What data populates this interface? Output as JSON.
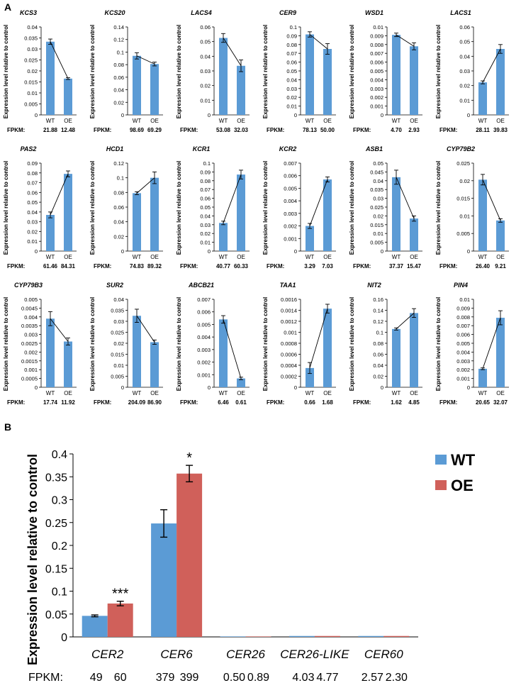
{
  "panels": {
    "a_label": "A",
    "b_label": "B"
  },
  "colors": {
    "wt": "#5b9bd5",
    "oe": "#d0605a",
    "axis": "#000000"
  },
  "chart_data": [
    {
      "type": "bar",
      "gene": "KCS3",
      "ylabel": "Expression level relative to control",
      "categories": [
        "WT",
        "OE"
      ],
      "values": [
        0.0333,
        0.0165
      ],
      "errors": [
        0.0012,
        0.0004
      ],
      "ylim": [
        0,
        0.04
      ],
      "yticks": [
        "0",
        "0.005",
        "0.01",
        "0.015",
        "0.02",
        "0.025",
        "0.03",
        "0.035",
        "0.04"
      ],
      "fpkm_label": "FPKM:",
      "fpkm": [
        "21.88",
        "12.48"
      ]
    },
    {
      "type": "bar",
      "gene": "KCS20",
      "ylabel": "Expression level relative to control",
      "categories": [
        "WT",
        "OE"
      ],
      "values": [
        0.094,
        0.081
      ],
      "errors": [
        0.005,
        0.003
      ],
      "ylim": [
        0,
        0.14
      ],
      "yticks": [
        "0",
        "0.02",
        "0.04",
        "0.06",
        "0.08",
        "0.1",
        "0.12",
        "0.14"
      ],
      "fpkm_label": "FPKM:",
      "fpkm": [
        "98.69",
        "69.29"
      ]
    },
    {
      "type": "bar",
      "gene": "LACS4",
      "ylabel": "Expression level relative to control",
      "categories": [
        "WT",
        "OE"
      ],
      "values": [
        0.0525,
        0.0335
      ],
      "errors": [
        0.003,
        0.004
      ],
      "ylim": [
        0,
        0.06
      ],
      "yticks": [
        "0",
        "0.01",
        "0.02",
        "0.03",
        "0.04",
        "0.05",
        "0.06"
      ],
      "fpkm_label": "FPKM:",
      "fpkm": [
        "53.08",
        "32.03"
      ]
    },
    {
      "type": "bar",
      "gene": "CER9",
      "ylabel": "Expression level relative to control",
      "categories": [
        "WT",
        "OE"
      ],
      "values": [
        0.0915,
        0.075
      ],
      "errors": [
        0.003,
        0.006
      ],
      "ylim": [
        0,
        0.1
      ],
      "yticks": [
        "0",
        "0.01",
        "0.02",
        "0.03",
        "0.04",
        "0.05",
        "0.06",
        "0.07",
        "0.08",
        "0.09",
        "0.1"
      ],
      "fpkm_label": "FPKM:",
      "fpkm": [
        "78.13",
        "50.00"
      ]
    },
    {
      "type": "bar",
      "gene": "WSD1",
      "ylabel": "Expression level relative to control",
      "categories": [
        "WT",
        "OE"
      ],
      "values": [
        0.0091,
        0.0078
      ],
      "errors": [
        0.0002,
        0.0004
      ],
      "ylim": [
        0,
        0.01
      ],
      "yticks": [
        "0",
        "0.001",
        "0.002",
        "0.003",
        "0.004",
        "0.005",
        "0.006",
        "0.007",
        "0.008",
        "0.009",
        "0.01"
      ],
      "fpkm_label": "FPKM:",
      "fpkm": [
        "4.70",
        "2.93"
      ]
    },
    {
      "type": "bar",
      "gene": "LACS1",
      "ylabel": "Expression level relative to control",
      "categories": [
        "WT",
        "OE"
      ],
      "values": [
        0.0222,
        0.045
      ],
      "errors": [
        0.001,
        0.003
      ],
      "ylim": [
        0,
        0.06
      ],
      "yticks": [
        "0",
        "0.01",
        "0.02",
        "0.03",
        "0.04",
        "0.05",
        "0.06"
      ],
      "fpkm_label": "FPKM:",
      "fpkm": [
        "28.11",
        "39.83"
      ]
    },
    {
      "type": "bar",
      "gene": "PAS2",
      "ylabel": "Expression level relative to control",
      "categories": [
        "WT",
        "OE"
      ],
      "values": [
        0.037,
        0.079
      ],
      "errors": [
        0.003,
        0.003
      ],
      "ylim": [
        0,
        0.09
      ],
      "yticks": [
        "0",
        "0.01",
        "0.02",
        "0.03",
        "0.04",
        "0.05",
        "0.06",
        "0.07",
        "0.08",
        "0.09"
      ],
      "fpkm_label": "FPKM:",
      "fpkm": [
        "61.46",
        "84.31"
      ]
    },
    {
      "type": "bar",
      "gene": "HCD1",
      "ylabel": "Expression level relative to control",
      "categories": [
        "WT",
        "OE"
      ],
      "values": [
        0.079,
        0.1
      ],
      "errors": [
        0.002,
        0.008
      ],
      "ylim": [
        0,
        0.12
      ],
      "yticks": [
        "0",
        "0.02",
        "0.04",
        "0.06",
        "0.08",
        "0.1",
        "0.12"
      ],
      "fpkm_label": "FPKM:",
      "fpkm": [
        "74.83",
        "89.32"
      ]
    },
    {
      "type": "bar",
      "gene": "KCR1",
      "ylabel": "Expression level relative to control",
      "categories": [
        "WT",
        "OE"
      ],
      "values": [
        0.032,
        0.087
      ],
      "errors": [
        0.002,
        0.005
      ],
      "ylim": [
        0,
        0.1
      ],
      "yticks": [
        "0",
        "0.01",
        "0.02",
        "0.03",
        "0.04",
        "0.05",
        "0.06",
        "0.07",
        "0.08",
        "0.09",
        "0.1"
      ],
      "fpkm_label": "FPKM:",
      "fpkm": [
        "40.77",
        "60.33"
      ]
    },
    {
      "type": "bar",
      "gene": "KCR2",
      "ylabel": "Expression level relative to control",
      "categories": [
        "WT",
        "OE"
      ],
      "values": [
        0.002,
        0.0057
      ],
      "errors": [
        0.0002,
        0.0002
      ],
      "ylim": [
        0,
        0.007
      ],
      "yticks": [
        "0",
        "0.001",
        "0.002",
        "0.003",
        "0.004",
        "0.005",
        "0.006",
        "0.007"
      ],
      "fpkm_label": "FPKM:",
      "fpkm": [
        "3.29",
        "7.03"
      ]
    },
    {
      "type": "bar",
      "gene": "ASB1",
      "ylabel": "Expression level relative to control",
      "categories": [
        "WT",
        "OE"
      ],
      "values": [
        0.042,
        0.0185
      ],
      "errors": [
        0.004,
        0.0015
      ],
      "ylim": [
        0,
        0.05
      ],
      "yticks": [
        "0",
        "0.005",
        "0.01",
        "0.015",
        "0.02",
        "0.025",
        "0.03",
        "0.035",
        "0.04",
        "0.045",
        "0.05"
      ],
      "fpkm_label": "FPKM:",
      "fpkm": [
        "37.37",
        "15.47"
      ]
    },
    {
      "type": "bar",
      "gene": "CYP79B2",
      "ylabel": "Expression level relative to control",
      "categories": [
        "WT",
        "OE"
      ],
      "values": [
        0.0203,
        0.0087
      ],
      "errors": [
        0.0015,
        0.0005
      ],
      "ylim": [
        0,
        0.025
      ],
      "yticks": [
        "0",
        "0.005",
        "0.01",
        "0.015",
        "0.02",
        "0.025"
      ],
      "fpkm_label": "FPKM:",
      "fpkm": [
        "26.40",
        "9.21"
      ]
    },
    {
      "type": "bar",
      "gene": "CYP79B3",
      "ylabel": "Expression level relative to control",
      "categories": [
        "WT",
        "OE"
      ],
      "values": [
        0.0039,
        0.0026
      ],
      "errors": [
        0.0004,
        0.0002
      ],
      "ylim": [
        0,
        0.005
      ],
      "yticks": [
        "0",
        "0.0005",
        "0.001",
        "0.0015",
        "0.002",
        "0.0025",
        "0.003",
        "0.0035",
        "0.004",
        "0.0045",
        "0.005"
      ],
      "fpkm_label": "FPKM:",
      "fpkm": [
        "17.74",
        "11.92"
      ]
    },
    {
      "type": "bar",
      "gene": "SUR2",
      "ylabel": "Expression level relative to control",
      "categories": [
        "WT",
        "OE"
      ],
      "values": [
        0.0325,
        0.0205
      ],
      "errors": [
        0.003,
        0.001
      ],
      "ylim": [
        0,
        0.04
      ],
      "yticks": [
        "0",
        "0.005",
        "0.01",
        "0.015",
        "0.02",
        "0.025",
        "0.03",
        "0.035",
        "0.04"
      ],
      "fpkm_label": "FPKM:",
      "fpkm": [
        "204.09",
        "86.90"
      ]
    },
    {
      "type": "bar",
      "gene": "ABCB21",
      "ylabel": "Expression level relative to control",
      "categories": [
        "WT",
        "OE"
      ],
      "values": [
        0.0054,
        0.0007
      ],
      "errors": [
        0.0003,
        0.0001
      ],
      "ylim": [
        0,
        0.007
      ],
      "yticks": [
        "0",
        "0.001",
        "0.002",
        "0.003",
        "0.004",
        "0.005",
        "0.006",
        "0.007"
      ],
      "fpkm_label": "FPKM:",
      "fpkm": [
        "6.46",
        "0.61"
      ]
    },
    {
      "type": "bar",
      "gene": "TAA1",
      "ylabel": "Expression level relative to control",
      "categories": [
        "WT",
        "OE"
      ],
      "values": [
        0.00035,
        0.00143
      ],
      "errors": [
        0.0001,
        8e-05
      ],
      "ylim": [
        0,
        0.0016
      ],
      "yticks": [
        "0",
        "0.0002",
        "0.0004",
        "0.0006",
        "0.0008",
        "0.001",
        "0.0012",
        "0.0014",
        "0.0016"
      ],
      "fpkm_label": "FPKM:",
      "fpkm": [
        "0.66",
        "1.68"
      ]
    },
    {
      "type": "bar",
      "gene": "NIT2",
      "ylabel": "Expression level relative to control",
      "categories": [
        "WT",
        "OE"
      ],
      "values": [
        0.106,
        0.135
      ],
      "errors": [
        0.002,
        0.008
      ],
      "ylim": [
        0,
        0.16
      ],
      "yticks": [
        "0",
        "0.02",
        "0.04",
        "0.06",
        "0.08",
        "0.1",
        "0.12",
        "0.14",
        "0.16"
      ],
      "fpkm_label": "FPKM:",
      "fpkm": [
        "1.62",
        "4.85"
      ]
    },
    {
      "type": "bar",
      "gene": "PIN4",
      "ylabel": "Expression level relative to control",
      "categories": [
        "WT",
        "OE"
      ],
      "values": [
        0.0021,
        0.0079
      ],
      "errors": [
        0.0001,
        0.0008
      ],
      "ylim": [
        0,
        0.01
      ],
      "yticks": [
        "0",
        "0.001",
        "0.002",
        "0.003",
        "0.004",
        "0.005",
        "0.006",
        "0.007",
        "0.008",
        "0.009",
        "0.01"
      ],
      "fpkm_label": "FPKM:",
      "fpkm": [
        "20.65",
        "32.07"
      ]
    },
    {
      "type": "bar",
      "ylabel": "Expression level relative to control",
      "categories": [
        "CER2",
        "CER6",
        "CER26",
        "CER26-LIKE",
        "CER60"
      ],
      "series": [
        {
          "name": "WT",
          "values": [
            0.046,
            0.248,
            0.001,
            0.002,
            0.002
          ],
          "errors": [
            0.002,
            0.03,
            0,
            0,
            0
          ]
        },
        {
          "name": "OE",
          "values": [
            0.073,
            0.357,
            0.001,
            0.002,
            0.002
          ],
          "errors": [
            0.005,
            0.018,
            0,
            0,
            0
          ]
        }
      ],
      "significance": [
        "***",
        "*",
        "",
        "",
        ""
      ],
      "ylim": [
        0,
        0.4
      ],
      "yticks": [
        "0",
        "0.05",
        "0.1",
        "0.15",
        "0.2",
        "0.25",
        "0.3",
        "0.35",
        "0.4"
      ],
      "fpkm_label": "FPKM:",
      "fpkm": [
        [
          "49",
          "60"
        ],
        [
          "379",
          "399"
        ],
        [
          "0.50",
          "0.89"
        ],
        [
          "4.03",
          "4.77"
        ],
        [
          "2.57",
          "2.30"
        ]
      ],
      "legend": [
        "WT",
        "OE"
      ],
      "legend_position": "top-right"
    }
  ]
}
